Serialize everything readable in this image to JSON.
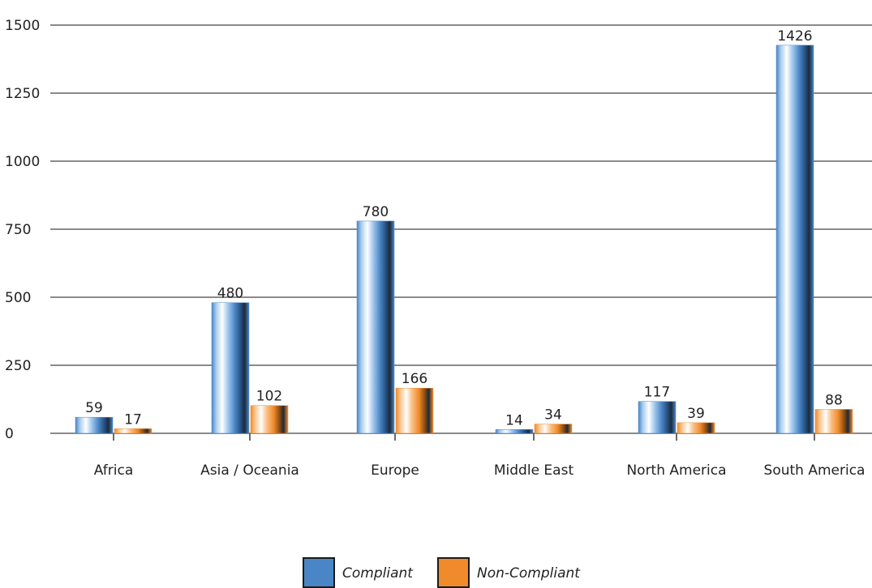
{
  "chart_data": {
    "type": "bar",
    "categories": [
      "Africa",
      "Asia / Oceania",
      "Europe",
      "Middle East",
      "North America",
      "South America"
    ],
    "series": [
      {
        "name": "Compliant",
        "values": [
          59,
          480,
          780,
          14,
          117,
          1426
        ],
        "color": "#4a86c5"
      },
      {
        "name": "Non-Compliant",
        "values": [
          17,
          102,
          166,
          34,
          39,
          88
        ],
        "color": "#f08a2a"
      }
    ],
    "title": "",
    "xlabel": "",
    "ylabel": "",
    "ylim": [
      0,
      1500
    ],
    "yticks": [
      0,
      250,
      500,
      750,
      1000,
      1250,
      1500
    ],
    "grid": true,
    "legend_position": "bottom-center"
  }
}
